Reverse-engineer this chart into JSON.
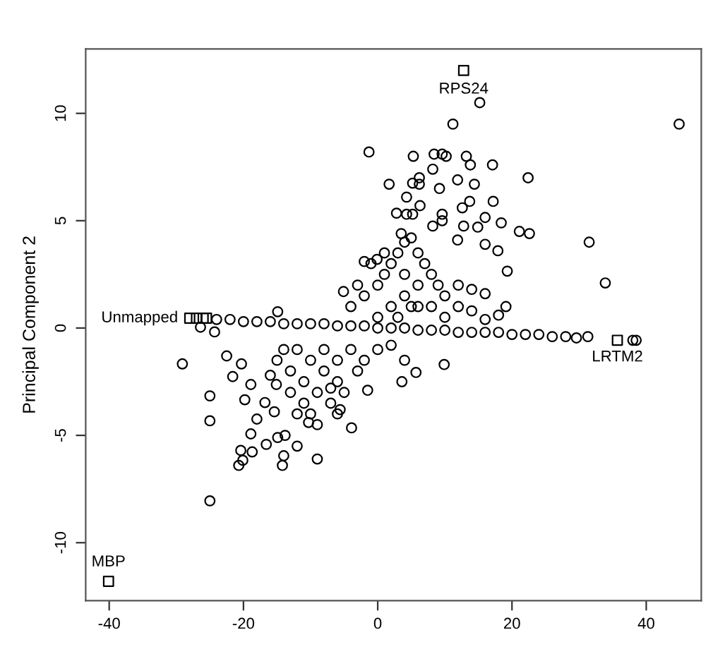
{
  "chart_data": {
    "type": "scatter",
    "ylabel": "Principal Component 2",
    "xlim": [
      -43.5,
      48.2
    ],
    "ylim": [
      -12.7,
      13.0
    ],
    "xticks": [
      -40,
      -20,
      0,
      20,
      40
    ],
    "yticks": [
      -10,
      -5,
      0,
      5,
      10
    ],
    "grid": false,
    "series": [
      {
        "color": "#000000",
        "marker": "circle",
        "x": [
          15.2,
          11.2,
          44.9,
          -1.3,
          5.3,
          8.4,
          9.6,
          10.2,
          13.2,
          13.8,
          17.1,
          8.2,
          22.4,
          1.7,
          5.2,
          6.2,
          6.2,
          9.2,
          11.9,
          14.4,
          13.7,
          17.2,
          4.3,
          6.3,
          2.8,
          4.3,
          5.2,
          9.6,
          12.6,
          16.0,
          18.4,
          21.1,
          22.6,
          12.8,
          14.9,
          11.9,
          16.0,
          17.9,
          31.5,
          19.3,
          33.9,
          19.1,
          -14.9,
          -5.1,
          -2.0,
          -0.1,
          3.5,
          8.2,
          9.6,
          -29.1,
          -26.4,
          -24.3,
          -25.0,
          -25.0,
          -25.0,
          -22.5,
          -21.6,
          -20.3,
          -19.8,
          -18.9,
          -18.9,
          -20.4,
          -20.7,
          -20.1,
          -18.7,
          -18.0,
          -16.6,
          -14.9,
          -13.8,
          -14.0,
          -14.2,
          -12.0,
          -9.0,
          -10.3,
          -3.9,
          -5.6,
          -15.1,
          -16.8,
          -15.4,
          3.6,
          5.7,
          9.9,
          -1.5,
          31.3,
          29.6,
          38.0,
          38.5,
          -4,
          -2,
          0,
          1,
          2,
          3,
          4,
          5,
          6,
          7,
          8,
          9,
          10,
          12,
          14,
          2,
          4,
          6,
          8,
          0,
          3,
          5,
          -1,
          1,
          4,
          6,
          -3,
          10,
          12,
          14,
          16,
          16,
          18,
          -12,
          -10,
          -8,
          -6,
          -7,
          -9,
          -11,
          -13,
          -14,
          -8,
          -6,
          -4,
          -5,
          -10,
          -12,
          -9,
          -7,
          -3,
          -2,
          0,
          2,
          4,
          -15,
          -16,
          -13,
          -11,
          -6,
          -24,
          -22,
          -20,
          -18,
          -16,
          -14,
          -12,
          -10,
          -8,
          -6,
          -4,
          -2,
          0,
          2,
          4,
          6,
          8,
          10,
          12,
          14,
          16,
          18,
          20,
          22,
          24,
          26,
          28
        ],
        "values": [
          10.5,
          9.5,
          9.5,
          8.2,
          8.0,
          8.1,
          8.1,
          8.0,
          8.0,
          7.6,
          7.6,
          7.4,
          7.0,
          6.7,
          6.75,
          7.0,
          6.7,
          6.5,
          6.9,
          6.7,
          5.9,
          5.9,
          6.1,
          5.7,
          5.35,
          5.3,
          5.3,
          5.3,
          5.6,
          5.15,
          4.9,
          4.5,
          4.4,
          4.75,
          4.7,
          4.1,
          3.9,
          3.6,
          4.0,
          2.65,
          2.1,
          1.0,
          0.76,
          1.7,
          3.1,
          3.2,
          4.4,
          4.75,
          5.0,
          -1.67,
          0.04,
          -0.18,
          -3.16,
          -4.32,
          -8.05,
          -1.3,
          -2.26,
          -1.67,
          -3.34,
          -4.93,
          -2.63,
          -5.7,
          -6.4,
          -6.16,
          -5.77,
          -4.24,
          -5.42,
          -5.1,
          -5.0,
          -5.95,
          -6.4,
          -5.5,
          -6.1,
          -4.4,
          -4.65,
          -3.8,
          -2.63,
          -3.47,
          -3.9,
          -2.5,
          -2.07,
          -1.7,
          -2.9,
          -0.4,
          -0.46,
          -0.57,
          -0.57,
          1,
          1.5,
          2,
          2.5,
          3,
          3.5,
          4,
          4.2,
          3.5,
          3,
          2.5,
          2,
          1.5,
          1,
          0.8,
          1,
          1.5,
          2,
          1,
          0.5,
          0.5,
          1,
          3,
          3.5,
          2.5,
          1,
          2,
          0.5,
          2,
          1.8,
          1.6,
          0.4,
          0.6,
          -1,
          -1.5,
          -2,
          -2.5,
          -3.5,
          -3,
          -2.5,
          -2,
          -1,
          -1,
          -1.5,
          -1,
          -3,
          -4,
          -4,
          -4.5,
          -2.8,
          -2,
          -1.5,
          -1,
          -0.8,
          -1.5,
          -1.5,
          -2.2,
          -3,
          -3.5,
          -4,
          0.4,
          0.4,
          0.3,
          0.3,
          0.3,
          0.2,
          0.2,
          0.2,
          0.2,
          0.1,
          0.1,
          0.1,
          0,
          0,
          0,
          -0.1,
          -0.1,
          -0.1,
          -0.2,
          -0.2,
          -0.2,
          -0.2,
          -0.3,
          -0.3,
          -0.3,
          -0.4,
          -0.4
        ]
      },
      {
        "color": "#000000",
        "marker": "square",
        "x": [
          12.8,
          35.7,
          -40.1,
          -28.0,
          -27.0,
          -26.0,
          -25.5
        ],
        "values": [
          12.0,
          -0.57,
          -11.8,
          0.46,
          0.46,
          0.46,
          0.46
        ]
      }
    ],
    "annotations": [
      {
        "text": "RPS24",
        "x": 12.8,
        "y": 12.0
      },
      {
        "text": "LRTM2",
        "x": 35.7,
        "y": -0.57
      },
      {
        "text": "MBP",
        "x": -40.1,
        "y": -11.8
      },
      {
        "text": "Unmapped",
        "x": -28.0,
        "y": 0.46
      }
    ]
  }
}
